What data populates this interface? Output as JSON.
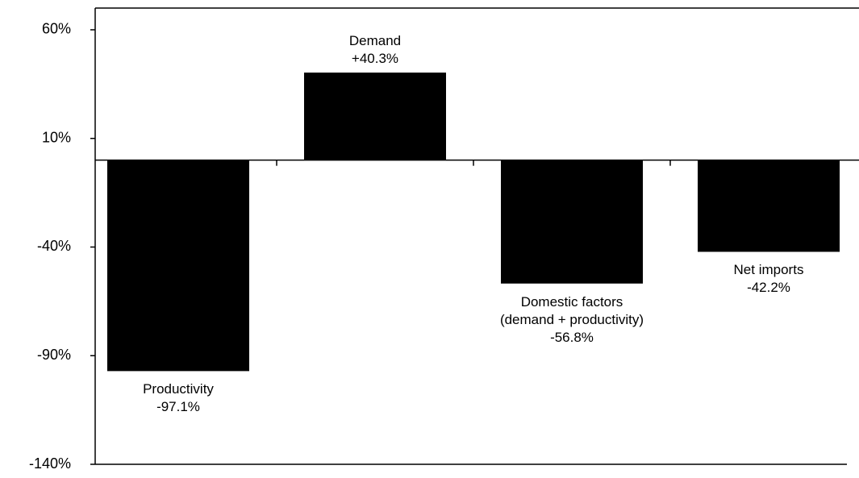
{
  "chart_data": {
    "type": "bar",
    "categories": [
      "Productivity",
      "Demand",
      "Domestic factors\n(demand + productivity)",
      "Net imports"
    ],
    "values": [
      -97.1,
      40.3,
      -56.8,
      -42.2
    ],
    "value_labels": [
      "-97.1%",
      "+40.3%",
      "-56.8%",
      "-42.2%"
    ],
    "color": "#000000",
    "ylim": [
      -140,
      70
    ],
    "yticks": [
      {
        "value": -140,
        "label": "-140%"
      },
      {
        "value": -90,
        "label": "-90%"
      },
      {
        "value": -40,
        "label": "-40%"
      },
      {
        "value": 10,
        "label": "10%"
      },
      {
        "value": 60,
        "label": "60%"
      }
    ],
    "grid": false
  }
}
